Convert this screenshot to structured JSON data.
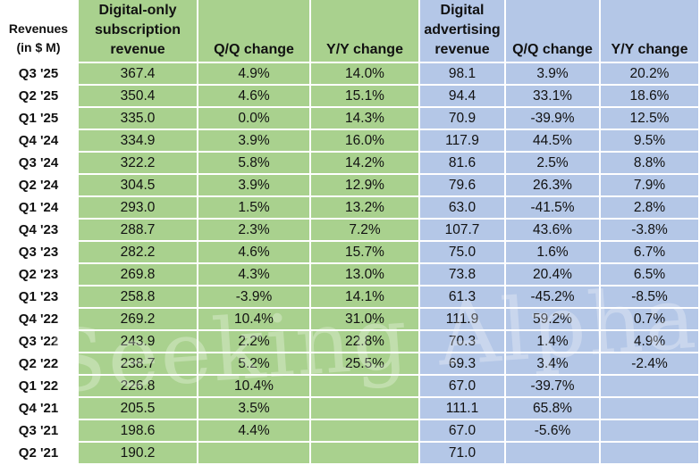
{
  "chart_data": {
    "type": "table",
    "watermark": "Seeking Alpha",
    "header": {
      "label": [
        "Revenues",
        "(in $ M)"
      ],
      "sub_rev": [
        "Digital-only",
        "subscription",
        "revenue"
      ],
      "sub_qq": "Q/Q change",
      "sub_yy": "Y/Y change",
      "ad_rev": [
        "Digital",
        "advertising",
        "revenue"
      ],
      "ad_qq": "Q/Q change",
      "ad_yy": "Y/Y change"
    },
    "colors": {
      "subscription_section": "#a9d18e",
      "advertising_section": "#b4c7e7"
    },
    "rows": [
      [
        "Q3 '25",
        "367.4",
        "4.9%",
        "14.0%",
        "98.1",
        "3.9%",
        "20.2%"
      ],
      [
        "Q2 '25",
        "350.4",
        "4.6%",
        "15.1%",
        "94.4",
        "33.1%",
        "18.6%"
      ],
      [
        "Q1 '25",
        "335.0",
        "0.0%",
        "14.3%",
        "70.9",
        "-39.9%",
        "12.5%"
      ],
      [
        "Q4 '24",
        "334.9",
        "3.9%",
        "16.0%",
        "117.9",
        "44.5%",
        "9.5%"
      ],
      [
        "Q3 '24",
        "322.2",
        "5.8%",
        "14.2%",
        "81.6",
        "2.5%",
        "8.8%"
      ],
      [
        "Q2 '24",
        "304.5",
        "3.9%",
        "12.9%",
        "79.6",
        "26.3%",
        "7.9%"
      ],
      [
        "Q1 '24",
        "293.0",
        "1.5%",
        "13.2%",
        "63.0",
        "-41.5%",
        "2.8%"
      ],
      [
        "Q4 '23",
        "288.7",
        "2.3%",
        "7.2%",
        "107.7",
        "43.6%",
        "-3.8%"
      ],
      [
        "Q3 '23",
        "282.2",
        "4.6%",
        "15.7%",
        "75.0",
        "1.6%",
        "6.7%"
      ],
      [
        "Q2 '23",
        "269.8",
        "4.3%",
        "13.0%",
        "73.8",
        "20.4%",
        "6.5%"
      ],
      [
        "Q1 '23",
        "258.8",
        "-3.9%",
        "14.1%",
        "61.3",
        "-45.2%",
        "-8.5%"
      ],
      [
        "Q4 '22",
        "269.2",
        "10.4%",
        "31.0%",
        "111.9",
        "59.2%",
        "0.7%"
      ],
      [
        "Q3 '22",
        "243.9",
        "2.2%",
        "22.8%",
        "70.3",
        "1.4%",
        "4.9%"
      ],
      [
        "Q2 '22",
        "238.7",
        "5.2%",
        "25.5%",
        "69.3",
        "3.4%",
        "-2.4%"
      ],
      [
        "Q1 '22",
        "226.8",
        "10.4%",
        "",
        "67.0",
        "-39.7%",
        ""
      ],
      [
        "Q4 '21",
        "205.5",
        "3.5%",
        "",
        "111.1",
        "65.8%",
        ""
      ],
      [
        "Q3 '21",
        "198.6",
        "4.4%",
        "",
        "67.0",
        "-5.6%",
        ""
      ],
      [
        "Q2 '21",
        "190.2",
        "",
        "",
        "71.0",
        "",
        ""
      ]
    ]
  }
}
